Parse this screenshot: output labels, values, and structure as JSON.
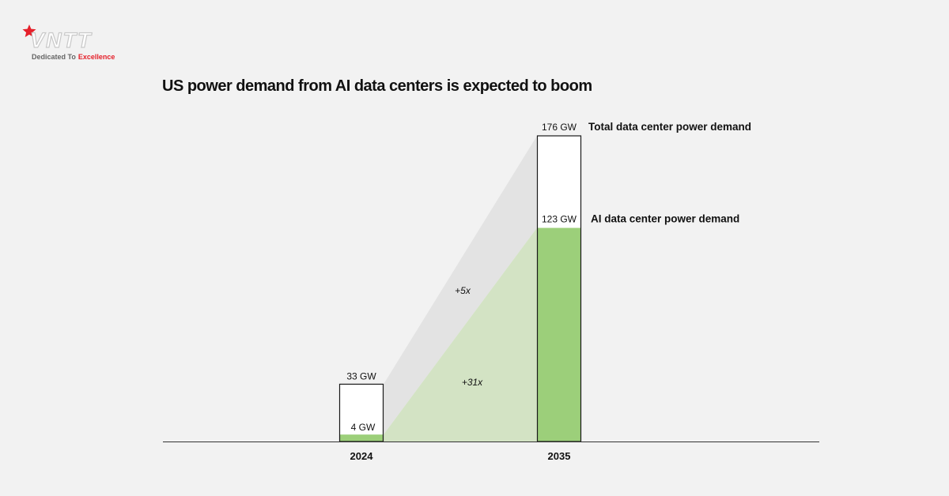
{
  "brand": {
    "logo_text": "VNTT",
    "tagline_prefix": "Dedicated To",
    "tagline_highlight": "Excellence",
    "accent_color": "#e5202a"
  },
  "chart_data": {
    "type": "bar",
    "title": "US power demand from AI data centers is expected to boom",
    "categories": [
      "2024",
      "2035"
    ],
    "series": [
      {
        "name": "Total data center power demand",
        "values": [
          33,
          176
        ],
        "value_labels": [
          "33 GW",
          "176 GW"
        ],
        "color": "#ffffff"
      },
      {
        "name": "AI data center power demand",
        "values": [
          4,
          123
        ],
        "value_labels": [
          "4 GW",
          "123 GW"
        ],
        "color": "#9ccf7a"
      }
    ],
    "annotations": [
      {
        "text": "+5x",
        "series": "Total data center power demand"
      },
      {
        "text": "+31x",
        "series": "AI data center power demand"
      }
    ],
    "unit": "GW",
    "ylim": [
      0,
      176
    ],
    "grid": false,
    "legend": "right of 2035 bar",
    "colors": {
      "total_band": "#e3e3e3",
      "ai_band": "#d3e3c4",
      "ai_bar": "#9ccf7a",
      "outline": "#1a1a1a",
      "axis": "#333333"
    }
  }
}
